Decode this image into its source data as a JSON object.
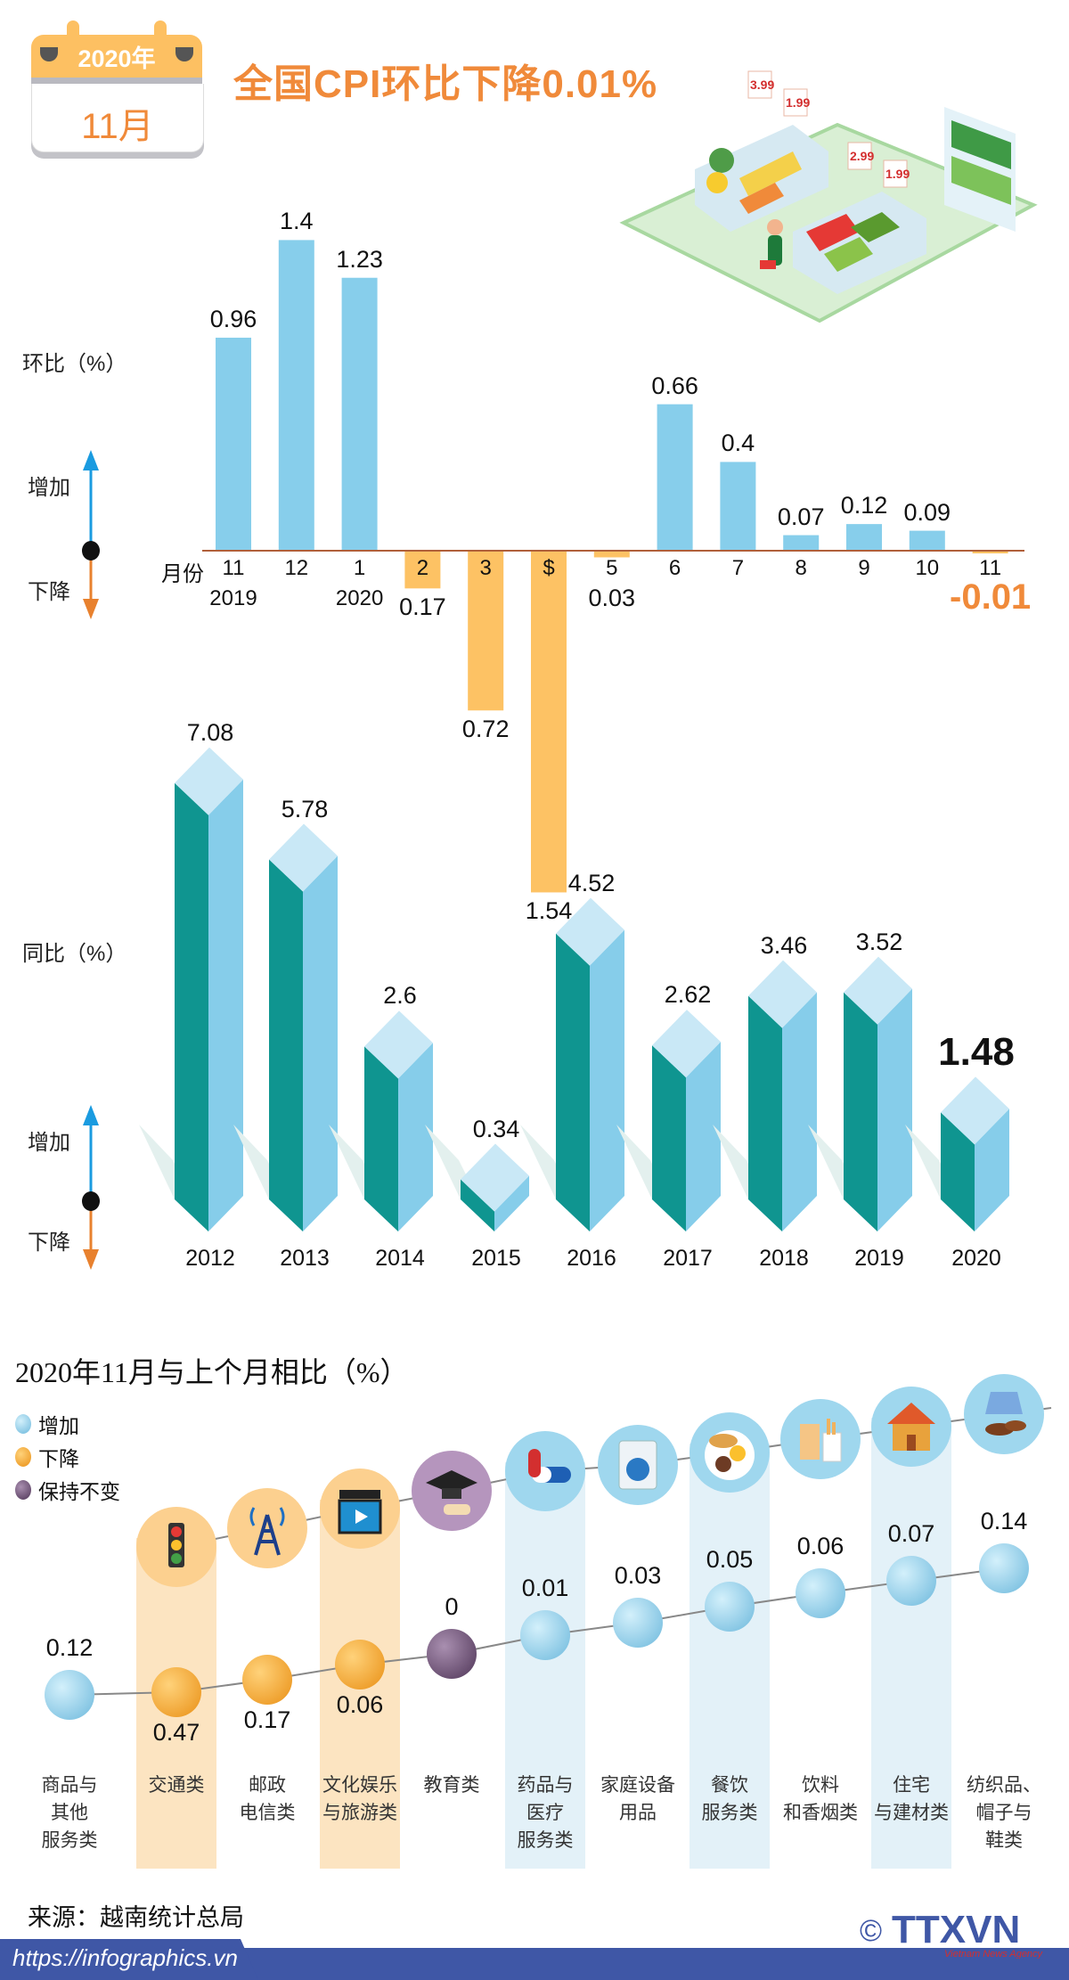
{
  "calendar": {
    "year": "2020年",
    "month": "11月"
  },
  "headline": "全国CPI环比下降0.01%",
  "illustration": {
    "price_tags": [
      "3.99",
      "1.99",
      "2.99",
      "1.99"
    ]
  },
  "colors": {
    "accent": "#f08a3a",
    "increase": "#87ceeb",
    "decrease": "#fdc264",
    "teal": "#0f9590",
    "unchanged": "#6e4f75",
    "footer": "#3f57a6"
  },
  "legend_axis": {
    "increase": "增加",
    "decrease": "下降"
  },
  "chart_data": [
    {
      "type": "bar",
      "ylabel": "环比（%）",
      "xlabel": "月份",
      "categories": [
        "11",
        "12",
        "1",
        "2",
        "3",
        "$",
        "5",
        "6",
        "7",
        "8",
        "9",
        "10",
        "11"
      ],
      "year_labels": {
        "0": "2019",
        "2": "2020"
      },
      "values": [
        0.96,
        1.4,
        1.23,
        -0.17,
        -0.72,
        -1.54,
        -0.03,
        0.66,
        0.4,
        0.07,
        0.12,
        0.09,
        -0.01
      ],
      "value_labels": [
        "0.96",
        "1.4",
        "1.23",
        "0.17",
        "0.72",
        "1.54",
        "0.03",
        "0.66",
        "0.4",
        "0.07",
        "0.12",
        "0.09",
        "-0.01"
      ],
      "highlight_last": true
    },
    {
      "type": "bar",
      "style": "3d",
      "ylabel": "同比（%）",
      "categories": [
        "2012",
        "2013",
        "2014",
        "2015",
        "2016",
        "2017",
        "2018",
        "2019",
        "2020"
      ],
      "values": [
        7.08,
        5.78,
        2.6,
        0.34,
        4.52,
        2.62,
        3.46,
        3.52,
        1.48
      ],
      "value_labels": [
        "7.08",
        "5.78",
        "2.6",
        "0.34",
        "4.52",
        "2.62",
        "3.46",
        "3.52",
        "1.48"
      ],
      "highlight_last": true
    },
    {
      "type": "line",
      "title": "2020年11月与上个月相比（%）",
      "legend": [
        {
          "label": "增加",
          "color": "#87ceeb"
        },
        {
          "label": "下降",
          "color": "#f6a623"
        },
        {
          "label": "保持不变",
          "color": "#6e4f75"
        }
      ],
      "categories": [
        {
          "name": [
            "商品与",
            "其他",
            "服务类"
          ],
          "value": "0.12",
          "status": "increase",
          "icon": "none"
        },
        {
          "name": [
            "交通类"
          ],
          "value": "0.47",
          "status": "decrease",
          "icon": "traffic-light-icon"
        },
        {
          "name": [
            "邮政",
            "电信类"
          ],
          "value": "0.17",
          "status": "decrease",
          "icon": "signal-tower-icon"
        },
        {
          "name": [
            "文化娱乐",
            "与旅游类"
          ],
          "value": "0.06",
          "status": "decrease",
          "icon": "clapperboard-icon"
        },
        {
          "name": [
            "教育类"
          ],
          "value": "0",
          "status": "unchanged",
          "icon": "graduation-cap-icon"
        },
        {
          "name": [
            "药品与",
            "医疗",
            "服务类"
          ],
          "value": "0.01",
          "status": "increase",
          "icon": "pill-icon"
        },
        {
          "name": [
            "家庭设备",
            "用品"
          ],
          "value": "0.03",
          "status": "increase",
          "icon": "washing-machine-icon"
        },
        {
          "name": [
            "餐饮",
            "服务类"
          ],
          "value": "0.05",
          "status": "increase",
          "icon": "meal-plate-icon"
        },
        {
          "name": [
            "饮料",
            "和香烟类"
          ],
          "value": "0.06",
          "status": "increase",
          "icon": "drink-cigarettes-icon"
        },
        {
          "name": [
            "住宅",
            "与建材类"
          ],
          "value": "0.07",
          "status": "increase",
          "icon": "house-icon"
        },
        {
          "name": [
            "纺织品、",
            "帽子与",
            "鞋类"
          ],
          "value": "0.14",
          "status": "increase",
          "icon": "shirt-shoes-icon"
        }
      ]
    }
  ],
  "footer": {
    "source": "来源：越南统计总局",
    "url": "https://infographics.vn",
    "logo_text": "TTXVN",
    "logo_sub": "Vietnam News Agency",
    "copyright": "©"
  }
}
